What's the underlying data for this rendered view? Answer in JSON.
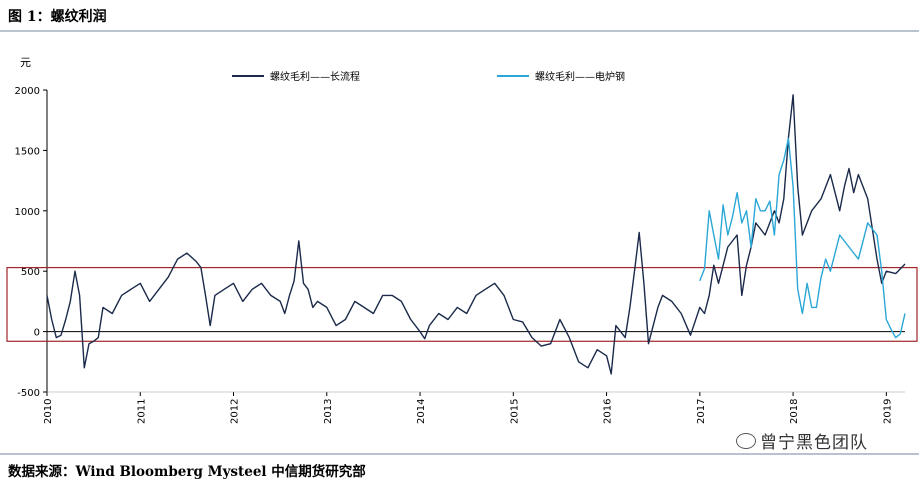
{
  "figure_title": "图 1：螺纹利润",
  "source_note": "数据来源：Wind Bloomberg Mysteel 中信期货研究部",
  "watermark": "曾宁黑色团队",
  "colors": {
    "long_process": "#1b2a4a",
    "eaf": "#2aa7d6",
    "box": "#a0262a",
    "axis": "#000000"
  },
  "chart_data": {
    "type": "line",
    "title": "",
    "ylabel": "元",
    "ylim": [
      -500,
      2000
    ],
    "yticks": [
      -500,
      0,
      500,
      1000,
      1500,
      2000
    ],
    "xlim": [
      2010.0,
      2019.2
    ],
    "xticks": [
      "2010",
      "2011",
      "2012",
      "2013",
      "2014",
      "2015",
      "2016",
      "2017",
      "2018",
      "2019"
    ],
    "legend_position": "top",
    "highlight_box": {
      "y_from": -80,
      "y_to": 530
    },
    "series": [
      {
        "name": "螺纹毛利——长流程",
        "x": [
          2010.0,
          2010.05,
          2010.1,
          2010.15,
          2010.2,
          2010.25,
          2010.3,
          2010.35,
          2010.4,
          2010.45,
          2010.5,
          2010.55,
          2010.6,
          2010.7,
          2010.8,
          2010.9,
          2011.0,
          2011.1,
          2011.2,
          2011.3,
          2011.4,
          2011.5,
          2011.6,
          2011.65,
          2011.7,
          2011.75,
          2011.8,
          2011.9,
          2012.0,
          2012.1,
          2012.2,
          2012.3,
          2012.4,
          2012.5,
          2012.55,
          2012.6,
          2012.65,
          2012.7,
          2012.75,
          2012.8,
          2012.85,
          2012.9,
          2013.0,
          2013.1,
          2013.2,
          2013.3,
          2013.4,
          2013.5,
          2013.6,
          2013.7,
          2013.8,
          2013.9,
          2014.0,
          2014.05,
          2014.1,
          2014.2,
          2014.3,
          2014.4,
          2014.5,
          2014.6,
          2014.7,
          2014.8,
          2014.9,
          2015.0,
          2015.1,
          2015.2,
          2015.3,
          2015.4,
          2015.5,
          2015.6,
          2015.7,
          2015.8,
          2015.9,
          2016.0,
          2016.05,
          2016.1,
          2016.2,
          2016.25,
          2016.3,
          2016.35,
          2016.4,
          2016.45,
          2016.5,
          2016.55,
          2016.6,
          2016.7,
          2016.8,
          2016.9,
          2017.0,
          2017.05,
          2017.1,
          2017.15,
          2017.2,
          2017.3,
          2017.4,
          2017.45,
          2017.5,
          2017.55,
          2017.6,
          2017.7,
          2017.8,
          2017.85,
          2017.9,
          2017.95,
          2018.0,
          2018.05,
          2018.1,
          2018.2,
          2018.3,
          2018.4,
          2018.5,
          2018.55,
          2018.6,
          2018.65,
          2018.7,
          2018.8,
          2018.9,
          2018.95,
          2019.0,
          2019.1,
          2019.2
        ],
        "y": [
          300,
          100,
          -50,
          -30,
          100,
          250,
          500,
          300,
          -300,
          -100,
          -80,
          -50,
          200,
          150,
          300,
          350,
          400,
          250,
          350,
          450,
          600,
          650,
          580,
          530,
          300,
          50,
          300,
          350,
          400,
          250,
          350,
          400,
          300,
          250,
          150,
          300,
          420,
          750,
          400,
          350,
          200,
          250,
          200,
          50,
          100,
          250,
          200,
          150,
          300,
          300,
          250,
          100,
          0,
          -60,
          50,
          150,
          100,
          200,
          150,
          300,
          350,
          400,
          300,
          100,
          80,
          -50,
          -120,
          -100,
          100,
          -50,
          -250,
          -300,
          -150,
          -200,
          -350,
          50,
          -50,
          200,
          500,
          820,
          400,
          -100,
          50,
          200,
          300,
          250,
          150,
          -30,
          200,
          150,
          300,
          550,
          400,
          700,
          800,
          300,
          550,
          700,
          900,
          800,
          1000,
          900,
          1100,
          1600,
          1960,
          1200,
          800,
          1000,
          1100,
          1300,
          1000,
          1200,
          1350,
          1150,
          1300,
          1100,
          600,
          400,
          500,
          480,
          560
        ]
      },
      {
        "name": "螺纹毛利——电炉钢",
        "x": [
          2017.0,
          2017.05,
          2017.1,
          2017.15,
          2017.2,
          2017.25,
          2017.3,
          2017.35,
          2017.4,
          2017.45,
          2017.5,
          2017.55,
          2017.6,
          2017.65,
          2017.7,
          2017.75,
          2017.8,
          2017.85,
          2017.9,
          2017.95,
          2018.0,
          2018.05,
          2018.1,
          2018.15,
          2018.2,
          2018.25,
          2018.3,
          2018.35,
          2018.4,
          2018.5,
          2018.6,
          2018.7,
          2018.8,
          2018.9,
          2018.95,
          2019.0,
          2019.05,
          2019.1,
          2019.15,
          2019.2
        ],
        "y": [
          420,
          520,
          1000,
          800,
          600,
          1050,
          800,
          950,
          1150,
          900,
          1000,
          700,
          1100,
          1000,
          1000,
          1080,
          800,
          1300,
          1420,
          1600,
          1200,
          350,
          150,
          400,
          200,
          200,
          450,
          600,
          500,
          800,
          700,
          600,
          900,
          800,
          500,
          100,
          20,
          -50,
          -20,
          150
        ]
      }
    ]
  }
}
